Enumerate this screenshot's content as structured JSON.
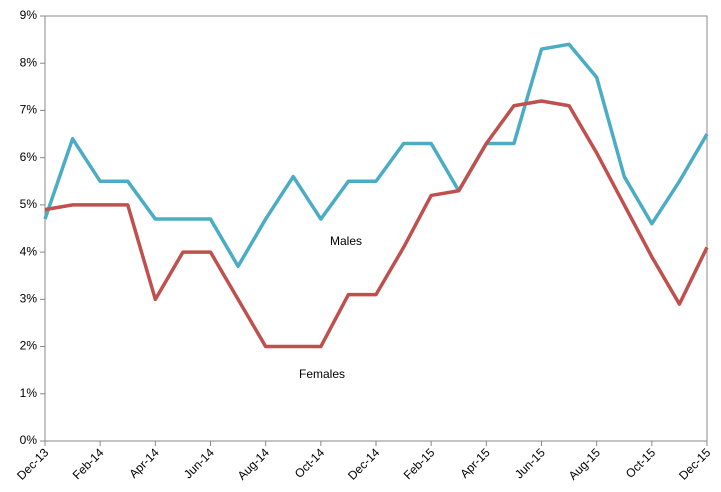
{
  "chart_data": {
    "type": "line",
    "categories": [
      "Dec-13",
      null,
      "Feb-14",
      null,
      "Apr-14",
      null,
      "Jun-14",
      null,
      "Aug-14",
      null,
      "Oct-14",
      null,
      "Dec-14",
      null,
      "Feb-15",
      null,
      "Apr-15",
      null,
      "Jun-15",
      null,
      "Aug-15",
      null,
      "Oct-15",
      null,
      "Dec-15"
    ],
    "series": [
      {
        "name": "Males",
        "color": "#4bacc6",
        "values": [
          4.7,
          6.4,
          5.5,
          5.5,
          4.7,
          4.7,
          4.7,
          3.7,
          4.7,
          5.6,
          4.7,
          5.5,
          5.5,
          6.3,
          6.3,
          5.3,
          6.3,
          6.3,
          8.3,
          8.4,
          7.7,
          5.6,
          4.6,
          5.5,
          6.5
        ]
      },
      {
        "name": "Females",
        "color": "#c0504d",
        "values": [
          4.9,
          5.0,
          5.0,
          5.0,
          3.0,
          4.0,
          4.0,
          3.0,
          2.0,
          2.0,
          2.0,
          3.1,
          3.1,
          4.1,
          5.2,
          5.3,
          6.3,
          7.1,
          7.2,
          7.1,
          6.1,
          5.0,
          3.9,
          2.9,
          4.1
        ]
      }
    ],
    "ylim": [
      0,
      9
    ],
    "yticks": [
      {
        "value": 0,
        "label": "0%"
      },
      {
        "value": 1,
        "label": "1%"
      },
      {
        "value": 2,
        "label": "2%"
      },
      {
        "value": 3,
        "label": "3%"
      },
      {
        "value": 4,
        "label": "4%"
      },
      {
        "value": 5,
        "label": "5%"
      },
      {
        "value": 6,
        "label": "6%"
      },
      {
        "value": 7,
        "label": "7%"
      },
      {
        "value": 8,
        "label": "8%"
      },
      {
        "value": 9,
        "label": "9%"
      }
    ]
  }
}
